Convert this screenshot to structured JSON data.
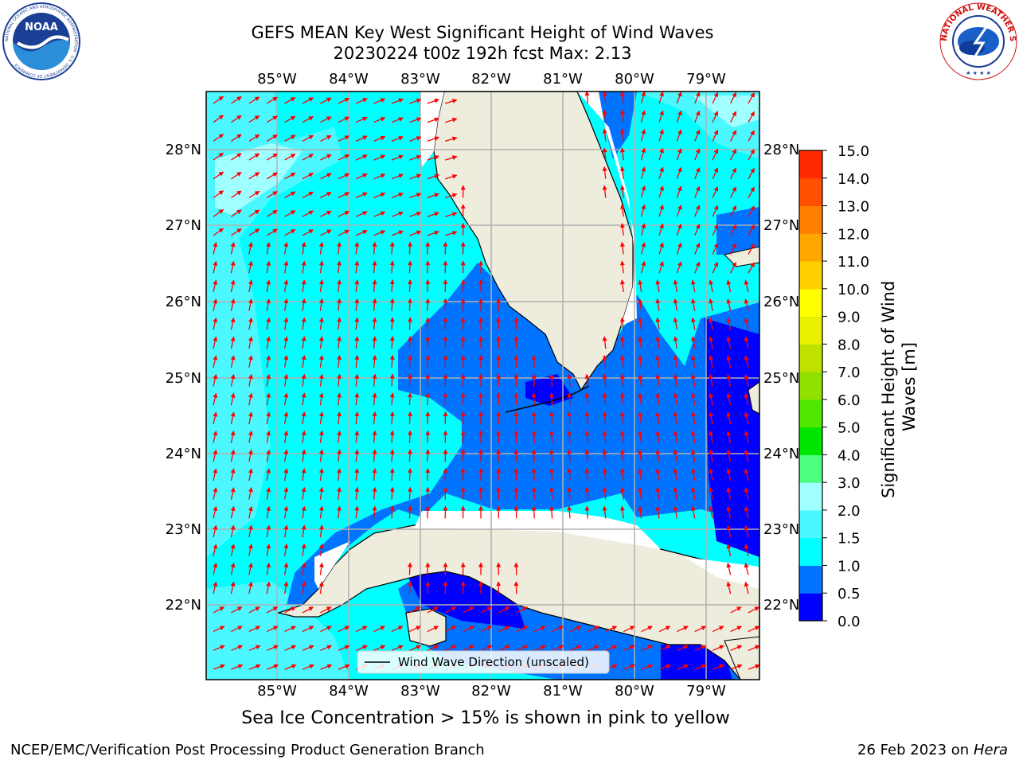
{
  "title": {
    "line1": "GEFS MEAN Key West Significant Height of Wind Waves",
    "line2": "20230224 t00z 192h fcst   Max: 2.13"
  },
  "logos": {
    "left": "NOAA",
    "left_ring_text": "NATIONAL OCEANIC AND ATMOSPHERIC ADMINISTRATION · U.S. DEPARTMENT OF COMMERCE",
    "right_ring_text": "NATIONAL WEATHER SERVICE"
  },
  "map": {
    "lon_labels": [
      "85°W",
      "84°W",
      "83°W",
      "82°W",
      "81°W",
      "80°W",
      "79°W"
    ],
    "lat_labels": [
      "28°N",
      "27°N",
      "26°N",
      "25°N",
      "24°N",
      "23°N",
      "22°N"
    ],
    "legend": "Wind Wave Direction (unscaled)",
    "arrow_color": "#ff0000",
    "land_color": "#eeecdd",
    "grid_color": "#b0b0b0"
  },
  "colorbar": {
    "title": "Significant Height of Wind Waves [m]",
    "title_line1": "Significant Height of Wind",
    "title_line2": "Waves [m]",
    "ticks": [
      "0.0",
      "0.5",
      "1.0",
      "1.5",
      "2.0",
      "3.0",
      "4.0",
      "5.0",
      "6.0",
      "7.0",
      "8.0",
      "9.0",
      "10.0",
      "11.0",
      "12.0",
      "13.0",
      "14.0",
      "15.0"
    ],
    "colors": [
      "#0000ff",
      "#0073ff",
      "#00ffff",
      "#4cf8ff",
      "#a0ffff",
      "#4dff80",
      "#00e600",
      "#50e800",
      "#90e000",
      "#c0e000",
      "#e6f000",
      "#ffff00",
      "#ffd000",
      "#ffa600",
      "#ff8000",
      "#ff5000",
      "#ff2a00",
      "#ff0000"
    ]
  },
  "bottom_note": "Sea Ice Concentration > 15% is shown in pink to yellow",
  "footer": {
    "left": "NCEP/EMC/Verification Post Processing Product Generation Branch",
    "right_date": "26 Feb 2023 on",
    "right_host": "Hera"
  }
}
